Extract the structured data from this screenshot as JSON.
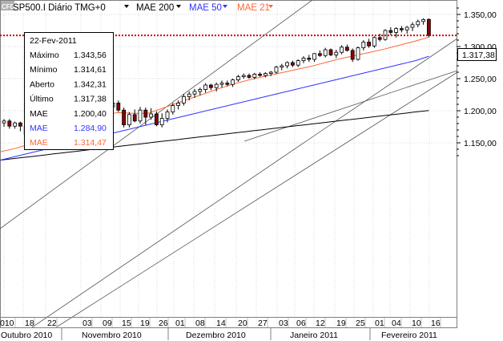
{
  "header": {
    "logo": "CFD",
    "symbol_label": "SP500.I Diário TMG+0",
    "mae200_label": "MAE 200",
    "mae50_label": "MAE 50",
    "mae21_label": "MAE 21",
    "dropdown_icon": "triangle-down-icon"
  },
  "colors": {
    "up_candle": "#ffffff",
    "down_candle": "#8b0000",
    "mae200": "#000000",
    "mae50": "#3333ff",
    "mae21": "#ff6633",
    "grid": "#d8d8d8",
    "price_line": "#cc0000",
    "channel": "#555555"
  },
  "info_box": {
    "date": "22-Fev-2011",
    "rows": [
      {
        "label": "Máximo",
        "value": "1.343,56",
        "color": "#000000"
      },
      {
        "label": "Mínimo",
        "value": "1.314,61",
        "color": "#000000"
      },
      {
        "label": "Aberto",
        "value": "1.342,31",
        "color": "#000000"
      },
      {
        "label": "Último",
        "value": "1.317,38",
        "color": "#000000"
      },
      {
        "label": "MAE",
        "value": "1.200,40",
        "color": "#000000"
      },
      {
        "label": "MAE",
        "value": "1.284,90",
        "color": "#3333ff"
      },
      {
        "label": "MAE",
        "value": "1.314,47",
        "color": "#ff6633"
      }
    ]
  },
  "price_tag": "1.317,38",
  "chart_data": {
    "type": "candlestick",
    "title": "SP500.I Diário TMG+0",
    "grid": true,
    "ylim": [
      1120,
      1360
    ],
    "y_ticks": [
      "1.350,00",
      "1.300,00",
      "1.250,00",
      "1.200,00",
      "1.150,00"
    ],
    "y_tick_values": [
      1350,
      1300,
      1250,
      1200,
      1150
    ],
    "x_day_ticks": [
      "010",
      "18",
      "22",
      "03",
      "09",
      "15",
      "19",
      "26",
      "01",
      "08",
      "14",
      "20",
      "27",
      "03",
      "06",
      "12",
      "19",
      "25",
      "01",
      "04",
      "10",
      "16"
    ],
    "x_month_labels": [
      "Outubro 2010",
      "Novembro 2010",
      "Dezembro 2010",
      "Janeiro 2011",
      "Fevereiro 2011"
    ],
    "last_price": 1317.38,
    "candles": [
      [
        1181,
        1187,
        1175,
        1184
      ],
      [
        1184,
        1187,
        1172,
        1176
      ],
      [
        1176,
        1183,
        1172,
        1181
      ],
      [
        1181,
        1183,
        1168,
        1176
      ],
      [
        1176,
        1180,
        1160,
        1163
      ],
      [
        1163,
        1178,
        1161,
        1176
      ],
      [
        1176,
        1186,
        1172,
        1183
      ],
      [
        1183,
        1185,
        1174,
        1177
      ],
      [
        1177,
        1186,
        1174,
        1184
      ],
      [
        1184,
        1190,
        1180,
        1187
      ],
      [
        1187,
        1188,
        1178,
        1180
      ],
      [
        1180,
        1190,
        1178,
        1186
      ],
      [
        1186,
        1192,
        1176,
        1180
      ],
      [
        1180,
        1186,
        1174,
        1185
      ],
      [
        1185,
        1195,
        1180,
        1193
      ],
      [
        1193,
        1228,
        1190,
        1226
      ],
      [
        1226,
        1230,
        1214,
        1217
      ],
      [
        1217,
        1227,
        1212,
        1226
      ],
      [
        1225,
        1228,
        1212,
        1215
      ],
      [
        1215,
        1220,
        1198,
        1206
      ],
      [
        1206,
        1216,
        1194,
        1212
      ],
      [
        1212,
        1216,
        1198,
        1201
      ],
      [
        1201,
        1205,
        1174,
        1178
      ],
      [
        1178,
        1198,
        1174,
        1194
      ],
      [
        1194,
        1202,
        1182,
        1184
      ],
      [
        1184,
        1206,
        1180,
        1201
      ],
      [
        1201,
        1205,
        1178,
        1190
      ],
      [
        1190,
        1204,
        1186,
        1195
      ],
      [
        1195,
        1199,
        1176,
        1178
      ],
      [
        1178,
        1196,
        1174,
        1188
      ],
      [
        1188,
        1202,
        1182,
        1198
      ],
      [
        1198,
        1212,
        1194,
        1208
      ],
      [
        1208,
        1216,
        1202,
        1212
      ],
      [
        1212,
        1226,
        1208,
        1222
      ],
      [
        1222,
        1230,
        1216,
        1226
      ],
      [
        1226,
        1234,
        1220,
        1230
      ],
      [
        1230,
        1236,
        1224,
        1233
      ],
      [
        1233,
        1243,
        1228,
        1240
      ],
      [
        1240,
        1242,
        1232,
        1236
      ],
      [
        1236,
        1244,
        1230,
        1241
      ],
      [
        1241,
        1247,
        1236,
        1243
      ],
      [
        1243,
        1247,
        1238,
        1241
      ],
      [
        1241,
        1250,
        1237,
        1248
      ],
      [
        1248,
        1256,
        1245,
        1253
      ],
      [
        1253,
        1258,
        1250,
        1255
      ],
      [
        1255,
        1258,
        1250,
        1252
      ],
      [
        1252,
        1259,
        1249,
        1257
      ],
      [
        1257,
        1260,
        1253,
        1255
      ],
      [
        1255,
        1260,
        1252,
        1258
      ],
      [
        1258,
        1262,
        1254,
        1260
      ],
      [
        1260,
        1270,
        1257,
        1268
      ],
      [
        1268,
        1273,
        1263,
        1270
      ],
      [
        1270,
        1277,
        1266,
        1275
      ],
      [
        1275,
        1278,
        1268,
        1271
      ],
      [
        1271,
        1280,
        1268,
        1278
      ],
      [
        1278,
        1285,
        1274,
        1282
      ],
      [
        1282,
        1287,
        1276,
        1280
      ],
      [
        1280,
        1290,
        1276,
        1289
      ],
      [
        1289,
        1294,
        1284,
        1286
      ],
      [
        1286,
        1298,
        1283,
        1295
      ],
      [
        1295,
        1297,
        1285,
        1287
      ],
      [
        1287,
        1295,
        1282,
        1291
      ],
      [
        1291,
        1302,
        1288,
        1299
      ],
      [
        1299,
        1303,
        1292,
        1294
      ],
      [
        1294,
        1297,
        1276,
        1280
      ],
      [
        1280,
        1300,
        1278,
        1298
      ],
      [
        1298,
        1310,
        1294,
        1307
      ],
      [
        1307,
        1312,
        1298,
        1301
      ],
      [
        1301,
        1316,
        1298,
        1314
      ],
      [
        1314,
        1320,
        1308,
        1311
      ],
      [
        1311,
        1327,
        1309,
        1325
      ],
      [
        1325,
        1330,
        1318,
        1322
      ],
      [
        1322,
        1330,
        1314,
        1328
      ],
      [
        1328,
        1332,
        1322,
        1326
      ],
      [
        1326,
        1332,
        1320,
        1330
      ],
      [
        1330,
        1338,
        1324,
        1334
      ],
      [
        1334,
        1342,
        1330,
        1339
      ],
      [
        1339,
        1344,
        1334,
        1342
      ],
      [
        1342.31,
        1343.56,
        1314.61,
        1317.38
      ]
    ],
    "series": [
      {
        "name": "MAE 200",
        "values": [
          1123.0,
          1124.4,
          1125.8,
          1127.2,
          1128.5,
          1129.9,
          1131.3,
          1132.7,
          1134.1,
          1135.5,
          1136.8,
          1138.2,
          1139.6,
          1141.0,
          1142.4,
          1143.8,
          1145.1,
          1146.5,
          1147.9,
          1149.3,
          1150.7,
          1152.1,
          1153.4,
          1154.8,
          1156.2,
          1157.6,
          1159.0,
          1160.4,
          1161.7,
          1163.1,
          1164.5,
          1165.9,
          1167.3,
          1168.7,
          1170.0,
          1171.4,
          1172.8,
          1174.2,
          1175.6,
          1177.0,
          1178.3,
          1179.7,
          1181.1,
          1182.5,
          1183.9,
          1185.3,
          1186.6,
          1188.0,
          1189.4,
          1190.8,
          1192.2,
          1193.6,
          1194.9,
          1196.3,
          1197.7,
          1199.1,
          1200.4
        ]
      },
      {
        "name": "MAE 50",
        "values": [
          1123.0,
          1128.0,
          1133.0,
          1138.0,
          1143.0,
          1148.0,
          1153.0,
          1158.0,
          1163.0,
          1168.0,
          1173.0,
          1178.0,
          1183.0,
          1188.0,
          1193.0,
          1198.0,
          1203.0,
          1208.0,
          1213.0,
          1218.0,
          1223.0,
          1228.0,
          1233.0,
          1238.0,
          1243.0,
          1248.0,
          1253.0,
          1258.0,
          1263.0,
          1268.0,
          1273.0,
          1278.0,
          1284.9
        ]
      },
      {
        "name": "MAE 21",
        "values": [
          1136.0,
          1141.0,
          1148.0,
          1156.0,
          1166.0,
          1175.0,
          1186.0,
          1194.0,
          1197.0,
          1196.0,
          1196.0,
          1204.0,
          1212.0,
          1220.0,
          1228.0,
          1236.0,
          1243.0,
          1249.0,
          1254.0,
          1259.0,
          1264.0,
          1269.0,
          1275.0,
          1281.0,
          1286.0,
          1291.0,
          1296.0,
          1302.0,
          1308.0,
          1314.47
        ]
      }
    ]
  }
}
